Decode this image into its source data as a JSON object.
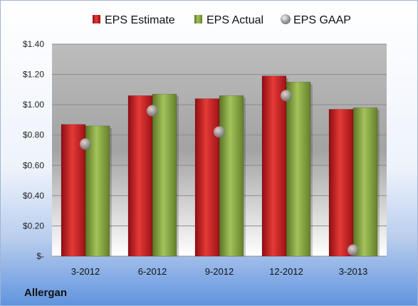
{
  "chart_data": {
    "type": "bar",
    "categories": [
      "3-2012",
      "6-2012",
      "9-2012",
      "12-2012",
      "3-2013"
    ],
    "series": [
      {
        "name": "EPS Estimate",
        "kind": "bar",
        "color": "#c0161a",
        "values": [
          0.87,
          1.06,
          1.04,
          1.19,
          0.97
        ]
      },
      {
        "name": "EPS Actual",
        "kind": "bar",
        "color": "#7d9a35",
        "values": [
          0.86,
          1.07,
          1.06,
          1.15,
          0.98
        ]
      },
      {
        "name": "EPS GAAP",
        "kind": "marker",
        "color": "#a8a8a8",
        "values": [
          0.74,
          0.96,
          0.82,
          1.06,
          0.04
        ]
      }
    ],
    "y_ticks": [
      {
        "value": 0,
        "label": "$-"
      },
      {
        "value": 0.2,
        "label": "$0.20"
      },
      {
        "value": 0.4,
        "label": "$0.40"
      },
      {
        "value": 0.6,
        "label": "$0.60"
      },
      {
        "value": 0.8,
        "label": "$0.80"
      },
      {
        "value": 1.0,
        "label": "$1.00"
      },
      {
        "value": 1.2,
        "label": "$1.20"
      },
      {
        "value": 1.4,
        "label": "$1.40"
      }
    ],
    "ylim": [
      0,
      1.4
    ],
    "grid": true,
    "legend_position": "top",
    "company_label": "Allergan"
  }
}
